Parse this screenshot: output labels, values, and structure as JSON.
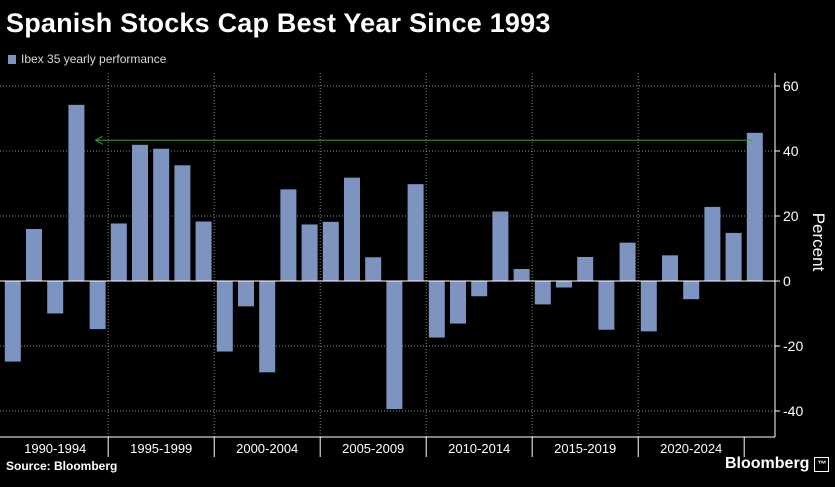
{
  "title": "Spanish Stocks Cap Best Year Since 1993",
  "legend": {
    "label": "Ibex 35 yearly performance"
  },
  "source": "Source: Bloomberg",
  "brand": {
    "name": "Bloomberg",
    "badge": "™"
  },
  "colors": {
    "background": "#000000",
    "bar": "#7d93c0",
    "grid": "#8a8a8a",
    "zero_line": "#ffffff",
    "annotation": "#3f9a3f",
    "text": "#ffffff"
  },
  "chart_data": {
    "type": "bar",
    "title": "Spanish Stocks Cap Best Year Since 1993",
    "series": [
      {
        "name": "Ibex 35 yearly performance",
        "x": [
          1990,
          1991,
          1992,
          1993,
          1994,
          1995,
          1996,
          1997,
          1998,
          1999,
          2000,
          2001,
          2002,
          2003,
          2004,
          2005,
          2006,
          2007,
          2008,
          2009,
          2010,
          2011,
          2012,
          2013,
          2014,
          2015,
          2016,
          2017,
          2018,
          2019,
          2020,
          2021,
          2022,
          2023,
          2024,
          2025
        ],
        "values": [
          -24.8,
          16.0,
          -10.0,
          54.2,
          -14.8,
          17.7,
          41.9,
          40.7,
          35.6,
          18.3,
          -21.7,
          -7.8,
          -28.1,
          28.2,
          17.4,
          18.2,
          31.8,
          7.3,
          -39.4,
          29.8,
          -17.4,
          -13.1,
          -4.7,
          21.4,
          3.7,
          -7.2,
          -2.0,
          7.4,
          -15.0,
          11.8,
          -15.5,
          7.9,
          -5.6,
          22.8,
          14.8,
          45.6
        ]
      }
    ],
    "categories": [
      "1990-1994",
      "1995-1999",
      "2000-2004",
      "2005-2009",
      "2010-2014",
      "2015-2019",
      "2020-2024"
    ],
    "ylabel": "Percent",
    "xlabel": "",
    "ylim": [
      -48,
      64
    ],
    "yticks": [
      -40,
      -20,
      0,
      20,
      40,
      60
    ],
    "ytick_labels": [
      "-40",
      "-20",
      "0",
      "20",
      "40",
      "60"
    ],
    "grid": true,
    "annotation": {
      "type": "arrow",
      "from_year": 2025,
      "to_year": 1994,
      "value": 43.3
    }
  }
}
